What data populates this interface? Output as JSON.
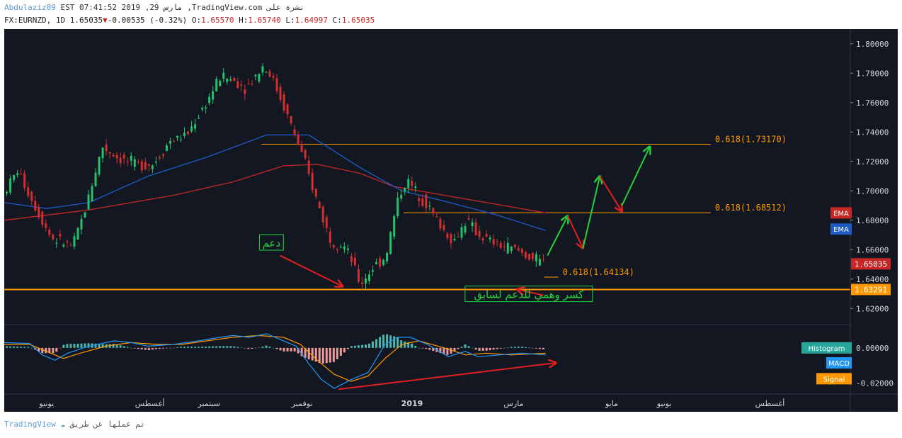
{
  "header": {
    "user": "Abdulaziz89",
    "line1": "EST 07:41:52 2019 ,29 مارس ,TradingView.com نشرة على",
    "symbol": "FX:EURNZD, 1D",
    "last": "1.65035",
    "change": "-0.00535 (-0.32%)",
    "o_label": "O:",
    "o": "1.65570",
    "h_label": "H:",
    "h": "1.65740",
    "l_label": "L:",
    "l": "1.64997",
    "c_label": "C:",
    "c": "1.65035"
  },
  "footer": {
    "brand": "TradingView",
    "text": "تم عملها عن طريق"
  },
  "colors": {
    "background": "#131722",
    "up": "#26c26a",
    "down": "#d32f2f",
    "ema_red": "#c62828",
    "ema_blue": "#1e5bc6",
    "orange": "#ff9800",
    "macd": "#2196f3",
    "signal": "#ff9800",
    "hist_pos": "#4db6ac",
    "hist_neg": "#ef9a9a"
  },
  "chart_data": {
    "type": "candlestick",
    "symbol": "EURNZD",
    "timeframe": "1D",
    "ylim": [
      1.61,
      1.81
    ],
    "yticks": [
      "1.80000",
      "1.78000",
      "1.76000",
      "1.74000",
      "1.72000",
      "1.70000",
      "1.68000",
      "1.66000",
      "1.64000",
      "1.62000"
    ],
    "xticks": [
      {
        "t": 0.05,
        "label": "يونيو"
      },
      {
        "t": 0.172,
        "label": "أغسطس"
      },
      {
        "t": 0.242,
        "label": "سبتمبر"
      },
      {
        "t": 0.352,
        "label": "نوفمبر"
      },
      {
        "t": 0.482,
        "label": "2019"
      },
      {
        "t": 0.602,
        "label": "مارس"
      },
      {
        "t": 0.718,
        "label": "مايو"
      },
      {
        "t": 0.78,
        "label": "يونيو"
      },
      {
        "t": 0.905,
        "label": "أغسطس"
      }
    ],
    "price_path": [
      [
        0.0,
        1.695
      ],
      [
        0.02,
        1.714
      ],
      [
        0.04,
        1.69
      ],
      [
        0.06,
        1.668
      ],
      [
        0.085,
        1.662
      ],
      [
        0.1,
        1.688
      ],
      [
        0.12,
        1.73
      ],
      [
        0.14,
        1.722
      ],
      [
        0.16,
        1.718
      ],
      [
        0.18,
        1.718
      ],
      [
        0.2,
        1.734
      ],
      [
        0.22,
        1.738
      ],
      [
        0.245,
        1.762
      ],
      [
        0.26,
        1.778
      ],
      [
        0.275,
        1.775
      ],
      [
        0.29,
        1.77
      ],
      [
        0.31,
        1.785
      ],
      [
        0.32,
        1.778
      ],
      [
        0.335,
        1.757
      ],
      [
        0.345,
        1.742
      ],
      [
        0.36,
        1.718
      ],
      [
        0.372,
        1.696
      ],
      [
        0.39,
        1.666
      ],
      [
        0.405,
        1.663
      ],
      [
        0.415,
        1.652
      ],
      [
        0.425,
        1.636
      ],
      [
        0.44,
        1.648
      ],
      [
        0.455,
        1.655
      ],
      [
        0.47,
        1.696
      ],
      [
        0.48,
        1.707
      ],
      [
        0.49,
        1.7
      ],
      [
        0.505,
        1.69
      ],
      [
        0.52,
        1.676
      ],
      [
        0.535,
        1.665
      ],
      [
        0.55,
        1.68
      ],
      [
        0.565,
        1.67
      ],
      [
        0.58,
        1.665
      ],
      [
        0.595,
        1.662
      ],
      [
        0.61,
        1.66
      ],
      [
        0.625,
        1.655
      ],
      [
        0.64,
        1.651
      ]
    ],
    "ema_red": [
      [
        0.0,
        1.68
      ],
      [
        0.1,
        1.687
      ],
      [
        0.2,
        1.697
      ],
      [
        0.27,
        1.706
      ],
      [
        0.33,
        1.717
      ],
      [
        0.37,
        1.718
      ],
      [
        0.42,
        1.712
      ],
      [
        0.46,
        1.703
      ],
      [
        0.52,
        1.697
      ],
      [
        0.58,
        1.691
      ],
      [
        0.64,
        1.685
      ]
    ],
    "ema_blue": [
      [
        0.0,
        1.692
      ],
      [
        0.05,
        1.688
      ],
      [
        0.1,
        1.692
      ],
      [
        0.17,
        1.71
      ],
      [
        0.24,
        1.723
      ],
      [
        0.31,
        1.738
      ],
      [
        0.36,
        1.738
      ],
      [
        0.42,
        1.716
      ],
      [
        0.47,
        1.7
      ],
      [
        0.52,
        1.693
      ],
      [
        0.58,
        1.684
      ],
      [
        0.64,
        1.673
      ]
    ],
    "fib_levels": [
      {
        "label": "0.618(1.73170)",
        "value": 1.7317,
        "x0": 0.304,
        "x1": 0.835
      },
      {
        "label": "0.618(1.68512)",
        "value": 1.68512,
        "x0": 0.472,
        "x1": 0.835
      },
      {
        "label": "0.618(1.64134)",
        "value": 1.64134,
        "x0": 0.638,
        "x1": 0.655
      }
    ],
    "support_line": 1.63291,
    "price_labels": [
      {
        "text": "EMA",
        "value": 1.685,
        "color": "#c62828"
      },
      {
        "text": "EMA",
        "value": 1.674,
        "color": "#1e5bc6"
      },
      {
        "text": "1.65035",
        "value": 1.65035,
        "color": "#c62828"
      },
      {
        "text": "1.63291",
        "value": 1.63291,
        "color": "#ff9800"
      }
    ],
    "annotations": [
      {
        "text": "دعم",
        "x": 0.305,
        "y": 1.6635
      },
      {
        "text": "كسر وهمي للدعم لسابق",
        "x": 0.548,
        "y": 1.6285
      }
    ],
    "forecast_arrows": [
      {
        "from": [
          0.642,
          1.656
        ],
        "to": [
          0.666,
          1.683
        ],
        "color": "#22d43a"
      },
      {
        "from": [
          0.666,
          1.683
        ],
        "to": [
          0.684,
          1.661
        ],
        "color": "#e02020"
      },
      {
        "from": [
          0.684,
          1.661
        ],
        "to": [
          0.704,
          1.71
        ],
        "color": "#22d43a"
      },
      {
        "from": [
          0.704,
          1.71
        ],
        "to": [
          0.73,
          1.686
        ],
        "color": "#e02020"
      },
      {
        "from": [
          0.73,
          1.69
        ],
        "to": [
          0.763,
          1.73
        ],
        "color": "#22d43a"
      },
      {
        "from": [
          0.637,
          1.629
        ],
        "to": [
          0.606,
          1.633
        ],
        "color": "#e02020"
      },
      {
        "from": [
          0.326,
          1.656
        ],
        "to": [
          0.4,
          1.635
        ],
        "color": "#e02020"
      }
    ],
    "macd_panel": {
      "ylim": [
        -0.025,
        0.012
      ],
      "yticks": [
        "0.00000",
        "-0.02000"
      ],
      "labels": [
        {
          "text": "Histogram",
          "value": 0.0,
          "color": "#26a69a"
        },
        {
          "text": "MACD",
          "value": -0.0085,
          "color": "#2196f3"
        },
        {
          "text": "Signal",
          "value": -0.0175,
          "color": "#ff9800"
        }
      ],
      "macd": [
        [
          0.0,
          0.003
        ],
        [
          0.03,
          0.0025
        ],
        [
          0.045,
          -0.004
        ],
        [
          0.06,
          -0.007
        ],
        [
          0.075,
          -0.003
        ],
        [
          0.1,
          0.001
        ],
        [
          0.13,
          0.004
        ],
        [
          0.15,
          0.003
        ],
        [
          0.17,
          0.001
        ],
        [
          0.2,
          0.002
        ],
        [
          0.23,
          0.004
        ],
        [
          0.255,
          0.006
        ],
        [
          0.27,
          0.007
        ],
        [
          0.29,
          0.006
        ],
        [
          0.31,
          0.008
        ],
        [
          0.33,
          0.004
        ],
        [
          0.345,
          0.001
        ],
        [
          0.36,
          -0.009
        ],
        [
          0.375,
          -0.018
        ],
        [
          0.39,
          -0.023
        ],
        [
          0.41,
          -0.018
        ],
        [
          0.43,
          -0.014
        ],
        [
          0.45,
          0.002
        ],
        [
          0.465,
          0.006
        ],
        [
          0.48,
          0.006
        ],
        [
          0.5,
          0.002
        ],
        [
          0.525,
          -0.005
        ],
        [
          0.545,
          -0.002
        ],
        [
          0.56,
          -0.005
        ],
        [
          0.585,
          -0.004
        ],
        [
          0.61,
          -0.003
        ],
        [
          0.64,
          -0.004
        ]
      ],
      "signal": [
        [
          0.0,
          0.002
        ],
        [
          0.03,
          0.002
        ],
        [
          0.05,
          -0.002
        ],
        [
          0.07,
          -0.006
        ],
        [
          0.09,
          -0.003
        ],
        [
          0.12,
          0.001
        ],
        [
          0.15,
          0.003
        ],
        [
          0.18,
          0.002
        ],
        [
          0.21,
          0.002
        ],
        [
          0.24,
          0.004
        ],
        [
          0.27,
          0.006
        ],
        [
          0.3,
          0.007
        ],
        [
          0.33,
          0.006
        ],
        [
          0.35,
          0.002
        ],
        [
          0.37,
          -0.007
        ],
        [
          0.39,
          -0.015
        ],
        [
          0.41,
          -0.019
        ],
        [
          0.43,
          -0.016
        ],
        [
          0.45,
          -0.006
        ],
        [
          0.47,
          0.002
        ],
        [
          0.49,
          0.004
        ],
        [
          0.52,
          0.0
        ],
        [
          0.545,
          -0.004
        ],
        [
          0.57,
          -0.003
        ],
        [
          0.6,
          -0.004
        ],
        [
          0.64,
          -0.003
        ]
      ],
      "hist_arrow": {
        "from": [
          0.395,
          -0.0235
        ],
        "to": [
          0.652,
          -0.0085
        ],
        "color": "#e02020"
      }
    }
  }
}
